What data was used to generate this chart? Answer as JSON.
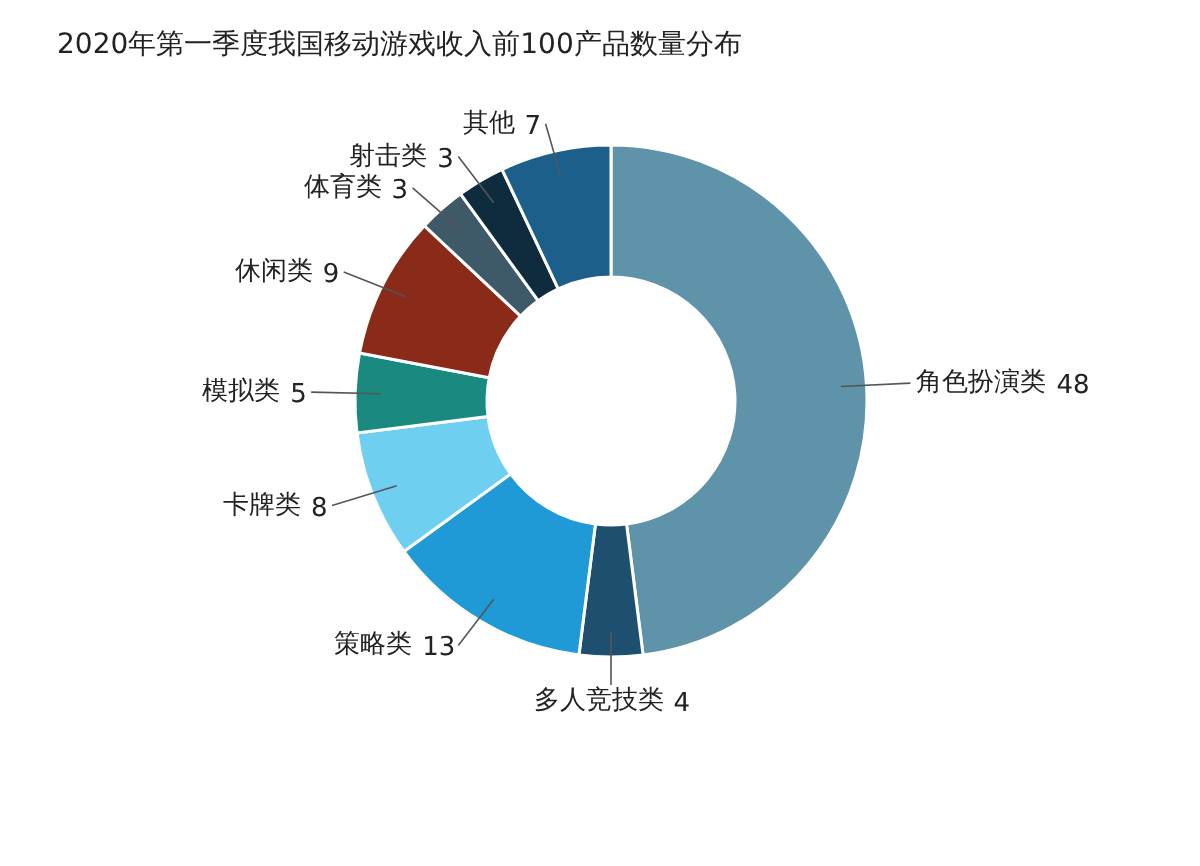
{
  "chart_data": {
    "type": "donut",
    "title": "2020年第一季度我国移动游戏收入前100产品数量分布",
    "categories": [
      "角色扮演类",
      "多人竞技类",
      "策略类",
      "卡牌类",
      "模拟类",
      "休闲类",
      "体育类",
      "射击类",
      "其他"
    ],
    "values": [
      48,
      4,
      13,
      8,
      5,
      9,
      3,
      3,
      7
    ],
    "colors": [
      "#5f93aa",
      "#1f4f6e",
      "#1f9ad6",
      "#6fcff0",
      "#1a8a80",
      "#8a2a18",
      "#3e5a68",
      "#0f2c3e",
      "#1b5f8a"
    ],
    "data_labels": true
  }
}
